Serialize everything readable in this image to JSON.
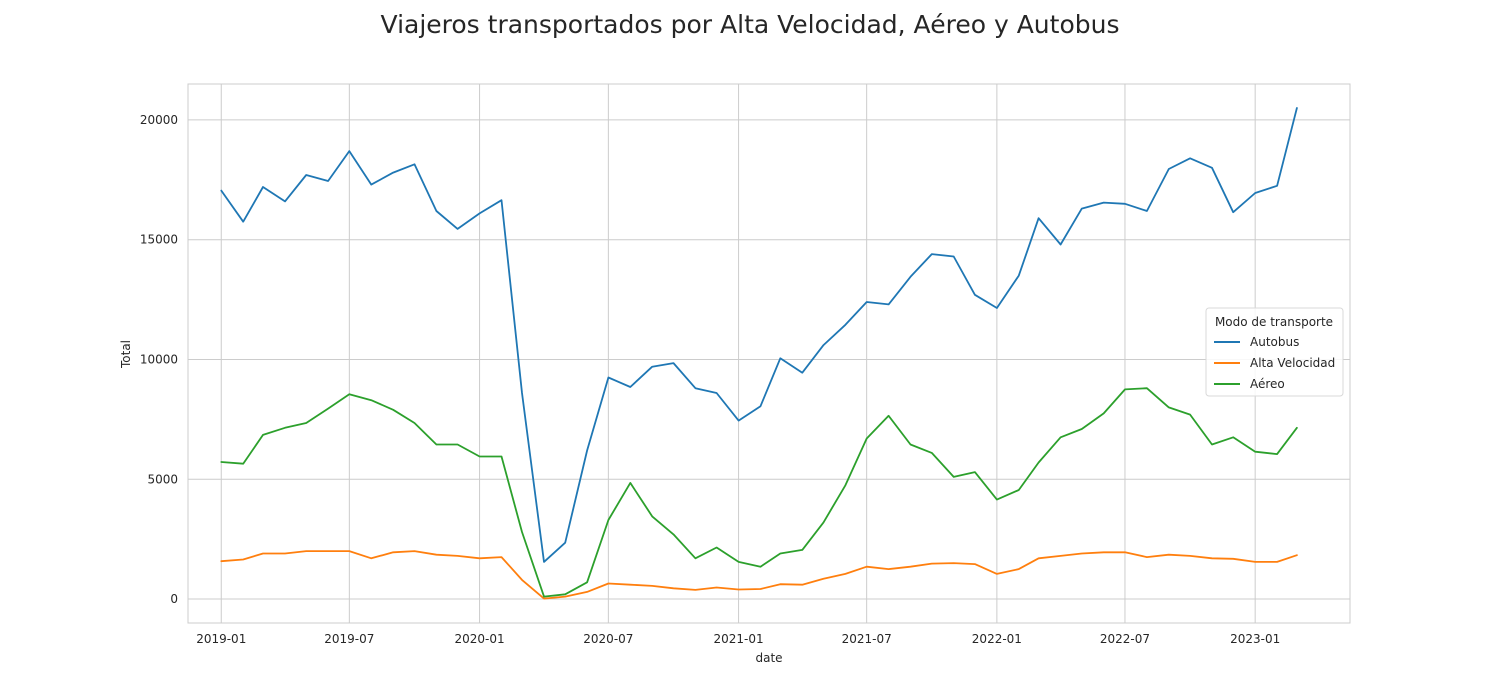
{
  "chart_data": {
    "type": "line",
    "title": "Viajeros transportados por Alta Velocidad, Aéreo y Autobus",
    "xlabel": "date",
    "ylabel": "Total",
    "x": [
      "2019-01",
      "2019-02",
      "2019-03",
      "2019-04",
      "2019-05",
      "2019-06",
      "2019-07",
      "2019-08",
      "2019-09",
      "2019-10",
      "2019-11",
      "2019-12",
      "2020-01",
      "2020-02",
      "2020-03",
      "2020-04",
      "2020-05",
      "2020-06",
      "2020-07",
      "2020-08",
      "2020-09",
      "2020-10",
      "2020-11",
      "2020-12",
      "2021-01",
      "2021-02",
      "2021-03",
      "2021-04",
      "2021-05",
      "2021-06",
      "2021-07",
      "2021-08",
      "2021-09",
      "2021-10",
      "2021-11",
      "2021-12",
      "2022-01",
      "2022-02",
      "2022-03",
      "2022-04",
      "2022-05",
      "2022-06",
      "2022-07",
      "2022-08",
      "2022-09",
      "2022-10",
      "2022-11",
      "2022-12",
      "2023-01",
      "2023-02",
      "2023-03"
    ],
    "xticks": [
      "2019-01",
      "2019-07",
      "2020-01",
      "2020-07",
      "2021-01",
      "2021-07",
      "2022-01",
      "2022-07",
      "2023-01"
    ],
    "yticks": [
      0,
      5000,
      10000,
      15000,
      20000
    ],
    "ylim": [
      -1000,
      21500
    ],
    "xlim": [
      "2018-11-15",
      "2023-05-15"
    ],
    "grid": true,
    "legend": {
      "title": "Modo de transporte",
      "placement": "center-right"
    },
    "series": [
      {
        "name": "Autobus",
        "color": "#1f77b4",
        "values": [
          17050,
          15750,
          17200,
          16600,
          17700,
          17450,
          18700,
          17300,
          17800,
          18150,
          16200,
          15450,
          16100,
          16650,
          8600,
          1550,
          2350,
          6200,
          9250,
          8850,
          9700,
          9850,
          8800,
          8600,
          7450,
          8050,
          10050,
          9450,
          10600,
          11450,
          12400,
          12300,
          13450,
          14400,
          14300,
          12700,
          12150,
          13500,
          15900,
          14800,
          16300,
          16550,
          16500,
          16200,
          17950,
          18400,
          18000,
          16150,
          16950,
          17250,
          20500
        ]
      },
      {
        "name": "Alta Velocidad",
        "color": "#ff7f0e",
        "values": [
          1580,
          1650,
          1900,
          1900,
          2000,
          2000,
          2000,
          1700,
          1950,
          2000,
          1850,
          1800,
          1700,
          1750,
          800,
          20,
          100,
          300,
          650,
          600,
          550,
          450,
          380,
          480,
          400,
          420,
          620,
          600,
          850,
          1050,
          1350,
          1250,
          1350,
          1480,
          1500,
          1460,
          1050,
          1250,
          1700,
          1800,
          1900,
          1950,
          1950,
          1750,
          1850,
          1800,
          1700,
          1680,
          1550,
          1550,
          1830
        ]
      },
      {
        "name": "Aéreo",
        "color": "#2ca02c",
        "values": [
          5720,
          5650,
          6850,
          7150,
          7350,
          7950,
          8550,
          8300,
          7900,
          7350,
          6450,
          6450,
          5950,
          5950,
          2800,
          100,
          200,
          700,
          3300,
          4850,
          3450,
          2700,
          1700,
          2150,
          1550,
          1350,
          1900,
          2050,
          3200,
          4750,
          6700,
          7650,
          6450,
          6100,
          5100,
          5300,
          4150,
          4550,
          5700,
          6750,
          7100,
          7750,
          8750,
          8800,
          8000,
          7700,
          6450,
          6750,
          6150,
          6050,
          7150
        ]
      }
    ]
  }
}
